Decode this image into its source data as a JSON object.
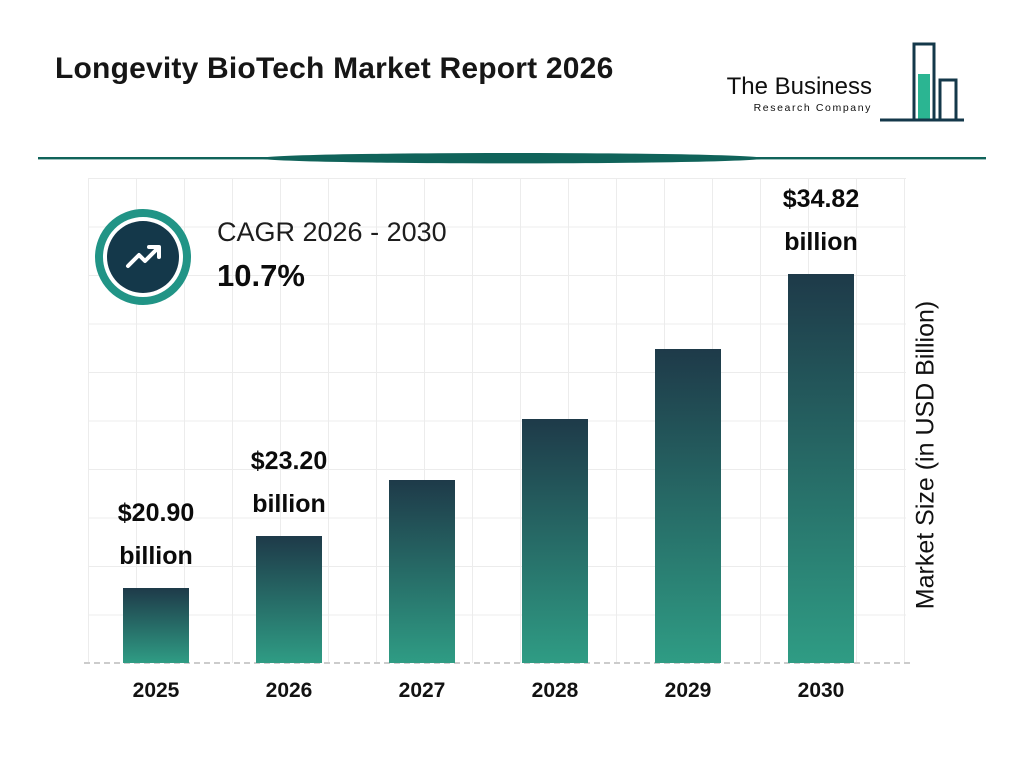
{
  "header": {
    "title": "Longevity BioTech Market Report 2026",
    "logo": {
      "line1": "The Business",
      "line2": "Research Company"
    }
  },
  "cagr": {
    "label": "CAGR 2026 - 2030",
    "value": "10.7%"
  },
  "colors": {
    "navy": "#14384a",
    "teal": "#2bb592",
    "divider": "#10635a",
    "ring": "#219486",
    "bar_top": "#1e3a49",
    "bar_bottom": "#2f9c84",
    "grid": "#ececec",
    "baseline": "#cccccc"
  },
  "chart_data": {
    "type": "bar",
    "title": "Longevity BioTech Market Report 2026",
    "categories": [
      "2025",
      "2026",
      "2027",
      "2028",
      "2029",
      "2030"
    ],
    "values": [
      20.9,
      23.2,
      25.7,
      28.4,
      31.5,
      34.82
    ],
    "bar_labels": [
      {
        "amount": "$20.90",
        "unit": "billion"
      },
      {
        "amount": "$23.20",
        "unit": "billion"
      },
      null,
      null,
      null,
      {
        "amount": "$34.82",
        "unit": "billion"
      }
    ],
    "xlabel": "",
    "ylabel": "Market Size (in USD Billion)",
    "ylim": [
      17.6,
      36
    ],
    "grid": true,
    "legend": false,
    "baseline_style": "dashed"
  }
}
